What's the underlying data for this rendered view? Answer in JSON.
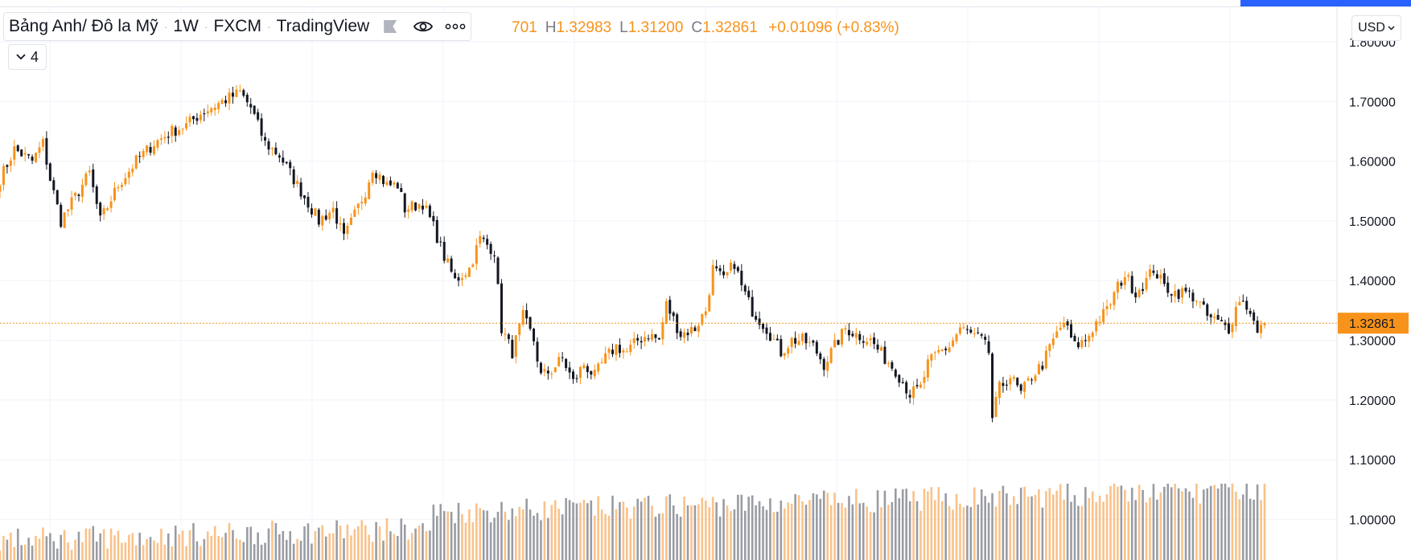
{
  "header": {
    "symbol": "Bảng Anh/ Đô la Mỹ",
    "interval": "1W",
    "exchange": "FXCM",
    "source": "TradingView",
    "ohlc": {
      "open_partial": "701",
      "high_key": "H",
      "high": "1.32983",
      "low_key": "L",
      "low": "1.31200",
      "close_key": "C",
      "close": "1.32861",
      "change": "+0.01096 (+0.83%)"
    },
    "collapse_count": "4",
    "currency": "USD"
  },
  "colors": {
    "up": "#f7931a",
    "down": "#131722",
    "vol_up": "#f9c28a",
    "vol_down": "#9a9ca3",
    "price_tag": "#f7931a"
  },
  "icons": [
    "chevron-down-icon",
    "flag-icon",
    "eye-icon",
    "more-dots-icon"
  ],
  "chart_data": {
    "type": "candlestick",
    "title": "Bảng Anh/ Đô la Mỹ · 1W · FXCM",
    "y_ticks": [
      "1.80000",
      "1.70000",
      "1.60000",
      "1.50000",
      "1.40000",
      "1.30000",
      "1.20000",
      "1.10000",
      "1.00000"
    ],
    "ylim": [
      0.94,
      1.805
    ],
    "last_price": "1.32861",
    "last_price_value": 1.32861,
    "grid": true,
    "anchors": [
      [
        0,
        1.57
      ],
      [
        4,
        1.62
      ],
      [
        9,
        1.6
      ],
      [
        12,
        1.63
      ],
      [
        14,
        1.57
      ],
      [
        17,
        1.5
      ],
      [
        22,
        1.55
      ],
      [
        25,
        1.58
      ],
      [
        28,
        1.5
      ],
      [
        33,
        1.56
      ],
      [
        38,
        1.6
      ],
      [
        43,
        1.63
      ],
      [
        48,
        1.65
      ],
      [
        52,
        1.66
      ],
      [
        56,
        1.68
      ],
      [
        62,
        1.7
      ],
      [
        67,
        1.715
      ],
      [
        70,
        1.69
      ],
      [
        74,
        1.63
      ],
      [
        78,
        1.61
      ],
      [
        83,
        1.56
      ],
      [
        86,
        1.53
      ],
      [
        89,
        1.5
      ],
      [
        93,
        1.52
      ],
      [
        96,
        1.47
      ],
      [
        99,
        1.51
      ],
      [
        102,
        1.55
      ],
      [
        104,
        1.59
      ],
      [
        108,
        1.56
      ],
      [
        111,
        1.56
      ],
      [
        113,
        1.52
      ],
      [
        118,
        1.53
      ],
      [
        121,
        1.49
      ],
      [
        124,
        1.44
      ],
      [
        127,
        1.4
      ],
      [
        131,
        1.42
      ],
      [
        134,
        1.47
      ],
      [
        138,
        1.45
      ],
      [
        140,
        1.32
      ],
      [
        143,
        1.28
      ],
      [
        146,
        1.34
      ],
      [
        149,
        1.3
      ],
      [
        151,
        1.24
      ],
      [
        154,
        1.25
      ],
      [
        157,
        1.27
      ],
      [
        160,
        1.23
      ],
      [
        163,
        1.26
      ],
      [
        166,
        1.24
      ],
      [
        169,
        1.27
      ],
      [
        172,
        1.29
      ],
      [
        175,
        1.28
      ],
      [
        178,
        1.3
      ],
      [
        181,
        1.31
      ],
      [
        184,
        1.3
      ],
      [
        186,
        1.36
      ],
      [
        190,
        1.31
      ],
      [
        194,
        1.32
      ],
      [
        197,
        1.35
      ],
      [
        199,
        1.42
      ],
      [
        202,
        1.4
      ],
      [
        205,
        1.43
      ],
      [
        207,
        1.39
      ],
      [
        210,
        1.35
      ],
      [
        214,
        1.32
      ],
      [
        218,
        1.28
      ],
      [
        221,
        1.3
      ],
      [
        224,
        1.3
      ],
      [
        227,
        1.29
      ],
      [
        230,
        1.26
      ],
      [
        233,
        1.29
      ],
      [
        236,
        1.32
      ],
      [
        239,
        1.31
      ],
      [
        243,
        1.3
      ],
      [
        247,
        1.27
      ],
      [
        250,
        1.25
      ],
      [
        254,
        1.21
      ],
      [
        257,
        1.22
      ],
      [
        259,
        1.26
      ],
      [
        262,
        1.28
      ],
      [
        265,
        1.29
      ],
      [
        268,
        1.32
      ],
      [
        271,
        1.31
      ],
      [
        274,
        1.3
      ],
      [
        276,
        1.28
      ],
      [
        277,
        1.17
      ],
      [
        279,
        1.22
      ],
      [
        282,
        1.24
      ],
      [
        285,
        1.21
      ],
      [
        288,
        1.24
      ],
      [
        291,
        1.26
      ],
      [
        294,
        1.3
      ],
      [
        297,
        1.33
      ],
      [
        300,
        1.29
      ],
      [
        303,
        1.3
      ],
      [
        306,
        1.33
      ],
      [
        309,
        1.35
      ],
      [
        312,
        1.39
      ],
      [
        314,
        1.41
      ],
      [
        317,
        1.38
      ],
      [
        320,
        1.4
      ],
      [
        322,
        1.42
      ],
      [
        325,
        1.39
      ],
      [
        328,
        1.38
      ],
      [
        331,
        1.38
      ],
      [
        334,
        1.37
      ],
      [
        337,
        1.34
      ],
      [
        340,
        1.33
      ],
      [
        343,
        1.32
      ],
      [
        346,
        1.37
      ],
      [
        349,
        1.35
      ],
      [
        351,
        1.31
      ],
      [
        353,
        1.32861
      ]
    ],
    "y_tick_values": [
      1.8,
      1.7,
      1.6,
      1.5,
      1.4,
      1.3,
      1.2,
      1.1,
      1.0
    ]
  }
}
